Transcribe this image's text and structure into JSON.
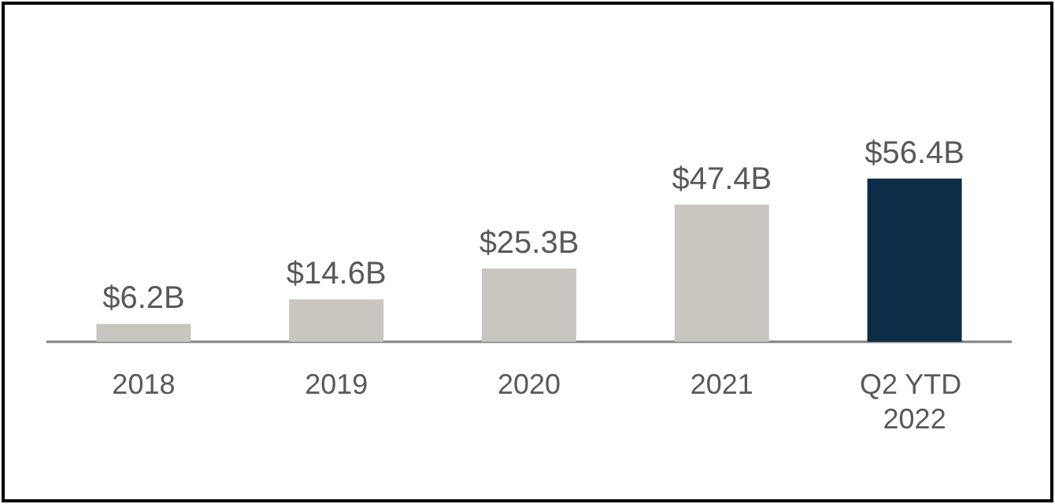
{
  "chart_data": {
    "type": "bar",
    "categories": [
      "2018",
      "2019",
      "2020",
      "2021",
      "Q2 YTD 2022"
    ],
    "values": [
      6.2,
      14.6,
      25.3,
      47.4,
      56.4
    ],
    "colors": [
      "#c9c6c0",
      "#c9c6c0",
      "#c9c6c0",
      "#c9c6c0",
      "#0c2d47"
    ],
    "value_labels": [
      "$6.2B",
      "$14.6B",
      "$25.3B",
      "$47.4B",
      "$56.4B"
    ]
  }
}
